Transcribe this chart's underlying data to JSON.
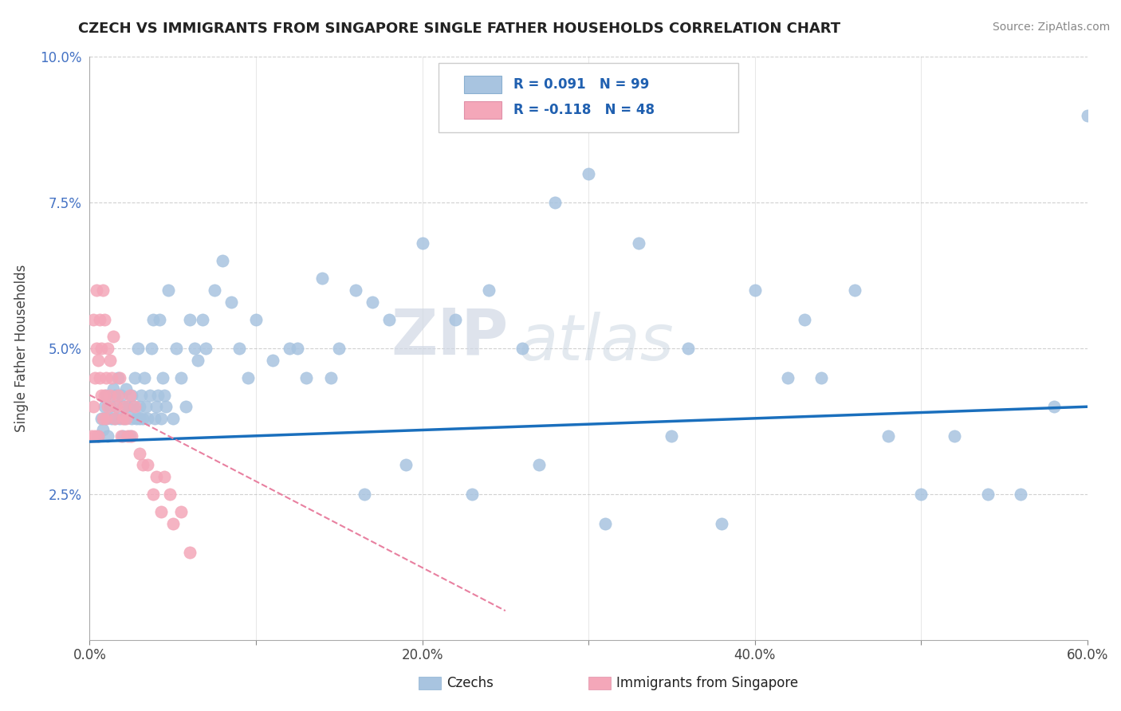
{
  "title": "CZECH VS IMMIGRANTS FROM SINGAPORE SINGLE FATHER HOUSEHOLDS CORRELATION CHART",
  "source": "Source: ZipAtlas.com",
  "ylabel": "Single Father Households",
  "xlabel": "",
  "xlim": [
    0.0,
    0.6
  ],
  "ylim": [
    0.0,
    0.1
  ],
  "xtick_labels": [
    "0.0%",
    "",
    "20.0%",
    "",
    "40.0%",
    "",
    "60.0%"
  ],
  "xtick_vals": [
    0.0,
    0.1,
    0.2,
    0.3,
    0.4,
    0.5,
    0.6
  ],
  "ytick_labels": [
    "2.5%",
    "5.0%",
    "7.5%",
    "10.0%"
  ],
  "ytick_vals": [
    0.025,
    0.05,
    0.075,
    0.1
  ],
  "legend_entry1": "R = 0.091   N = 99",
  "legend_entry2": "R = -0.118   N = 48",
  "czech_color": "#a8c4e0",
  "singapore_color": "#f4a7b9",
  "trendline_czech_color": "#1a6fbd",
  "trendline_singapore_color": "#e880a0",
  "watermark_zip": "ZIP",
  "watermark_atlas": "atlas",
  "background_color": "#ffffff",
  "czech_scatter_x": [
    0.005,
    0.007,
    0.008,
    0.009,
    0.01,
    0.01,
    0.011,
    0.012,
    0.013,
    0.014,
    0.015,
    0.015,
    0.016,
    0.017,
    0.018,
    0.019,
    0.02,
    0.02,
    0.021,
    0.022,
    0.023,
    0.024,
    0.025,
    0.025,
    0.026,
    0.027,
    0.028,
    0.029,
    0.03,
    0.03,
    0.031,
    0.032,
    0.033,
    0.034,
    0.035,
    0.036,
    0.037,
    0.038,
    0.039,
    0.04,
    0.041,
    0.042,
    0.043,
    0.044,
    0.045,
    0.046,
    0.047,
    0.05,
    0.052,
    0.055,
    0.058,
    0.06,
    0.063,
    0.065,
    0.068,
    0.07,
    0.075,
    0.08,
    0.085,
    0.09,
    0.095,
    0.1,
    0.11,
    0.12,
    0.13,
    0.14,
    0.15,
    0.16,
    0.17,
    0.18,
    0.2,
    0.22,
    0.24,
    0.26,
    0.28,
    0.3,
    0.33,
    0.36,
    0.4,
    0.42,
    0.44,
    0.46,
    0.48,
    0.5,
    0.52,
    0.54,
    0.56,
    0.58,
    0.6,
    0.43,
    0.38,
    0.35,
    0.31,
    0.27,
    0.23,
    0.19,
    0.165,
    0.145,
    0.125
  ],
  "czech_scatter_y": [
    0.035,
    0.038,
    0.036,
    0.04,
    0.042,
    0.038,
    0.035,
    0.04,
    0.038,
    0.043,
    0.038,
    0.042,
    0.04,
    0.045,
    0.038,
    0.042,
    0.035,
    0.04,
    0.038,
    0.043,
    0.04,
    0.035,
    0.042,
    0.038,
    0.04,
    0.045,
    0.038,
    0.05,
    0.038,
    0.04,
    0.042,
    0.038,
    0.045,
    0.04,
    0.038,
    0.042,
    0.05,
    0.055,
    0.038,
    0.04,
    0.042,
    0.055,
    0.038,
    0.045,
    0.042,
    0.04,
    0.06,
    0.038,
    0.05,
    0.045,
    0.04,
    0.055,
    0.05,
    0.048,
    0.055,
    0.05,
    0.06,
    0.065,
    0.058,
    0.05,
    0.045,
    0.055,
    0.048,
    0.05,
    0.045,
    0.062,
    0.05,
    0.06,
    0.058,
    0.055,
    0.068,
    0.055,
    0.06,
    0.05,
    0.075,
    0.08,
    0.068,
    0.05,
    0.06,
    0.045,
    0.045,
    0.06,
    0.035,
    0.025,
    0.035,
    0.025,
    0.025,
    0.04,
    0.09,
    0.055,
    0.02,
    0.035,
    0.02,
    0.03,
    0.025,
    0.03,
    0.025,
    0.045,
    0.05
  ],
  "singapore_scatter_x": [
    0.001,
    0.002,
    0.002,
    0.003,
    0.003,
    0.004,
    0.004,
    0.005,
    0.005,
    0.006,
    0.006,
    0.007,
    0.007,
    0.008,
    0.008,
    0.009,
    0.009,
    0.01,
    0.01,
    0.011,
    0.011,
    0.012,
    0.012,
    0.013,
    0.014,
    0.015,
    0.016,
    0.017,
    0.018,
    0.019,
    0.02,
    0.021,
    0.022,
    0.023,
    0.024,
    0.025,
    0.027,
    0.03,
    0.032,
    0.035,
    0.038,
    0.04,
    0.043,
    0.045,
    0.048,
    0.05,
    0.055,
    0.06
  ],
  "singapore_scatter_y": [
    0.035,
    0.04,
    0.055,
    0.045,
    0.035,
    0.05,
    0.06,
    0.035,
    0.048,
    0.045,
    0.055,
    0.042,
    0.05,
    0.038,
    0.06,
    0.042,
    0.055,
    0.045,
    0.038,
    0.04,
    0.05,
    0.042,
    0.048,
    0.045,
    0.052,
    0.038,
    0.04,
    0.042,
    0.045,
    0.035,
    0.038,
    0.04,
    0.038,
    0.035,
    0.042,
    0.035,
    0.04,
    0.032,
    0.03,
    0.03,
    0.025,
    0.028,
    0.022,
    0.028,
    0.025,
    0.02,
    0.022,
    0.015
  ]
}
